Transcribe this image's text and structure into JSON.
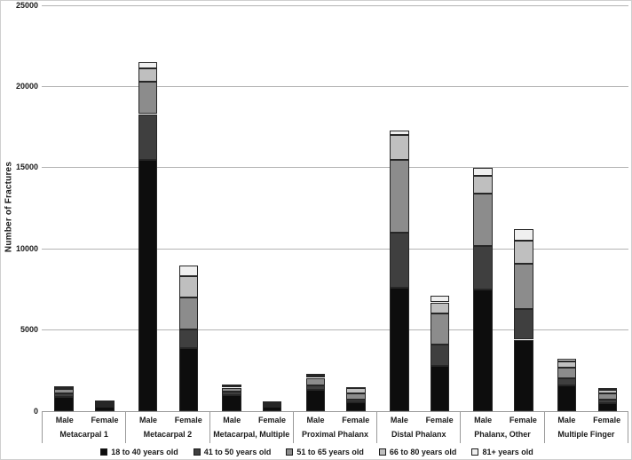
{
  "chart_data": {
    "type": "bar",
    "stacked": true,
    "title": "",
    "xlabel": "",
    "ylabel": "Number of Fractures",
    "ylim": [
      0,
      25000
    ],
    "y_ticks": [
      0,
      5000,
      10000,
      15000,
      20000,
      25000
    ],
    "grid": "horizontal",
    "legend_position": "bottom",
    "groups": [
      "Metacarpal 1",
      "Metacarpal 2",
      "Metacarpal, Multiple",
      "Proximal Phalanx",
      "Distal Phalanx",
      "Phalanx, Other",
      "Multiple Finger"
    ],
    "subgroups": [
      "Male",
      "Female"
    ],
    "column_order_note": "values arrays list Male then Female for each group, in group order",
    "series": [
      {
        "name": "18 to 40 years old",
        "color": "#0d0d0d",
        "values": [
          900,
          300,
          15500,
          3900,
          1000,
          280,
          1300,
          550,
          7600,
          2800,
          7500,
          4400,
          1600,
          500
        ]
      },
      {
        "name": "41 to 50 years old",
        "color": "#3f3f3f",
        "values": [
          200,
          80,
          2800,
          1150,
          200,
          80,
          300,
          150,
          3400,
          1300,
          2700,
          1900,
          400,
          200
        ]
      },
      {
        "name": "51 to 65 years old",
        "color": "#8c8c8c",
        "values": [
          250,
          130,
          2000,
          1950,
          250,
          120,
          450,
          400,
          4500,
          1900,
          3200,
          2800,
          700,
          400
        ]
      },
      {
        "name": "66 to 80 years old",
        "color": "#bfbfbf",
        "values": [
          150,
          90,
          800,
          1300,
          150,
          80,
          150,
          300,
          1500,
          700,
          1100,
          1400,
          350,
          200
        ]
      },
      {
        "name": "81+ years old",
        "color": "#efefef",
        "values": [
          50,
          50,
          400,
          700,
          50,
          40,
          100,
          100,
          300,
          400,
          500,
          700,
          200,
          150
        ]
      }
    ],
    "column_totals": [
      1550,
      650,
      21500,
      9000,
      1650,
      600,
      2300,
      1500,
      17300,
      7100,
      15000,
      11200,
      3250,
      1450
    ],
    "styles": {
      "gridline_color": "#b3b3b3",
      "axis_color": "#9a9a9a",
      "text_color": "#1a1a1a",
      "bar_border_color": "#262626",
      "background": "#ffffff"
    }
  }
}
